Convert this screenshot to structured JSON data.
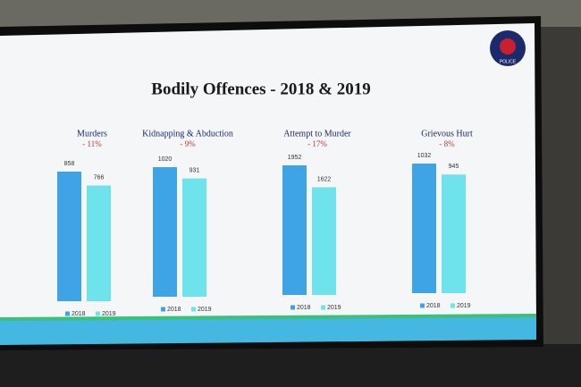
{
  "title": "Bodily Offences - 2018 & 2019",
  "logo_text": "POLICE",
  "chart_data": [
    {
      "type": "bar",
      "title": "Murders",
      "annotation": "- 11%",
      "series": [
        {
          "name": "2018",
          "color": "#3ea4e6",
          "values": [
            858
          ]
        },
        {
          "name": "2019",
          "color": "#6fe3ec",
          "values": [
            766
          ]
        }
      ]
    },
    {
      "type": "bar",
      "title": "Kidnapping & Abduction",
      "annotation": "- 9%",
      "series": [
        {
          "name": "2018",
          "color": "#3ea4e6",
          "values": [
            1020
          ]
        },
        {
          "name": "2019",
          "color": "#6fe3ec",
          "values": [
            931
          ]
        }
      ]
    },
    {
      "type": "bar",
      "title": "Attempt to Murder",
      "annotation": "- 17%",
      "series": [
        {
          "name": "2018",
          "color": "#3ea4e6",
          "values": [
            1952
          ]
        },
        {
          "name": "2019",
          "color": "#6fe3ec",
          "values": [
            1622
          ]
        }
      ]
    },
    {
      "type": "bar",
      "title": "Grievous Hurt",
      "annotation": "- 8%",
      "series": [
        {
          "name": "2018",
          "color": "#3ea4e6",
          "values": [
            1032
          ]
        },
        {
          "name": "2019",
          "color": "#6fe3ec",
          "values": [
            945
          ]
        }
      ]
    }
  ]
}
